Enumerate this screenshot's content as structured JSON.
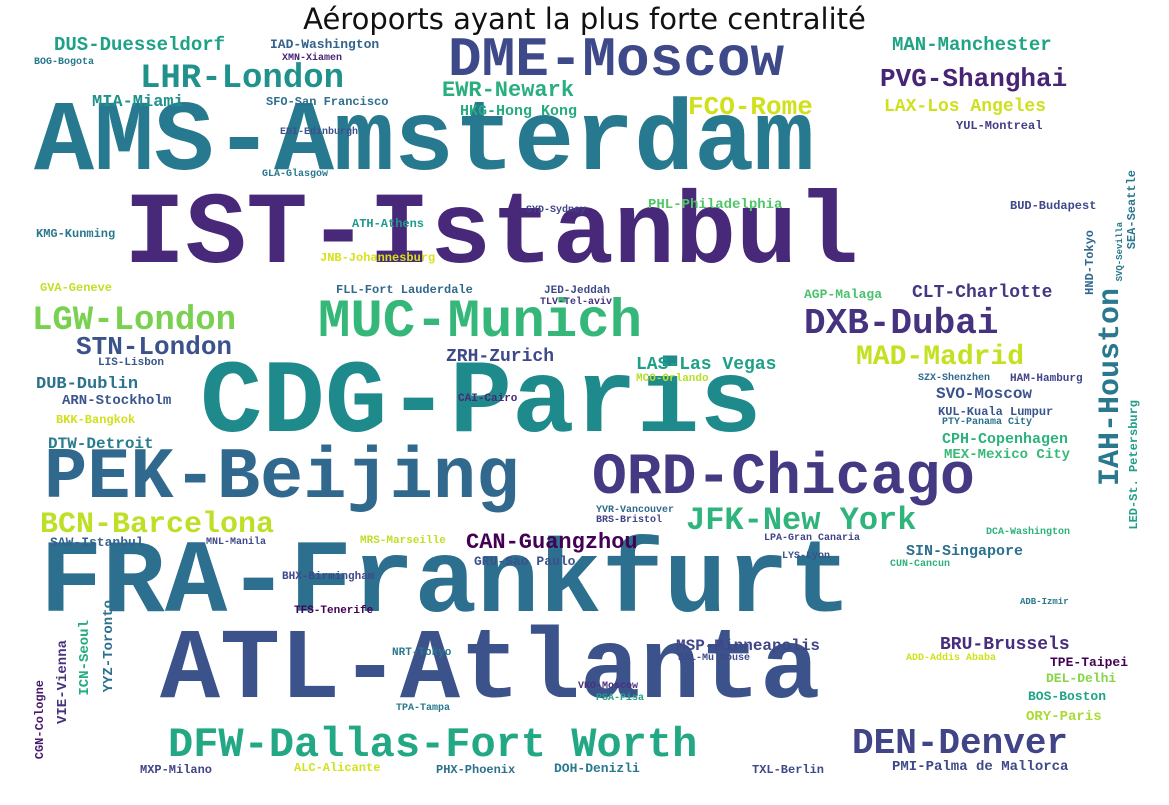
{
  "title": "Aéroports ayant la plus forte centralité",
  "palette": {
    "deep_purple": "#440154",
    "purple": "#482878",
    "indigo": "#3e4989",
    "blue": "#31688e",
    "teal": "#26828e",
    "sea": "#1f9e89",
    "green": "#35b779",
    "lime": "#6ece58",
    "yellow_green": "#b5de2b",
    "yellow": "#d8e219"
  },
  "words": [
    {
      "text": "CDG-Paris",
      "color": "#1f8a8c"
    },
    {
      "text": "FRA-Frankfurt",
      "color": "#2c6f8e"
    },
    {
      "text": "ATL-Atlanta",
      "color": "#3b528b"
    },
    {
      "text": "AMS-Amsterdam",
      "color": "#26798e"
    },
    {
      "text": "IST-Istanbul",
      "color": "#482878"
    },
    {
      "text": "ORD-Chicago",
      "color": "#443983"
    },
    {
      "text": "PEK-Beijing",
      "color": "#31688e"
    },
    {
      "text": "DME-Moscow",
      "color": "#3e4989"
    },
    {
      "text": "MUC-Munich",
      "color": "#35b779"
    },
    {
      "text": "DFW-Dallas-Fort Worth",
      "color": "#22a884"
    },
    {
      "text": "IAH-Houston",
      "color": "#2a788e"
    },
    {
      "text": "LHR-London",
      "color": "#21918c"
    },
    {
      "text": "DXB-Dubai",
      "color": "#46327e"
    },
    {
      "text": "LGW-London",
      "color": "#7ad151"
    },
    {
      "text": "DEN-Denver",
      "color": "#414487"
    },
    {
      "text": "JFK-New York",
      "color": "#2fb47c"
    },
    {
      "text": "BCN-Barcelona",
      "color": "#bddf26"
    },
    {
      "text": "STN-London",
      "color": "#3b528b"
    },
    {
      "text": "MAD-Madrid",
      "color": "#c5e021"
    },
    {
      "text": "PVG-Shanghai",
      "color": "#482475"
    },
    {
      "text": "FCO-Rome",
      "color": "#d0e11c"
    },
    {
      "text": "EWR-Newark",
      "color": "#29af7f"
    },
    {
      "text": "CAN-Guangzhou",
      "color": "#440154"
    },
    {
      "text": "DUS-Duesseldorf",
      "color": "#1fa187"
    },
    {
      "text": "MAN-Manchester",
      "color": "#20a486"
    },
    {
      "text": "LAX-Los Angeles",
      "color": "#cde11d"
    },
    {
      "text": "MIA-Miami",
      "color": "#21918c"
    },
    {
      "text": "CLT-Charlotte",
      "color": "#453781"
    },
    {
      "text": "LAS-Las Vegas",
      "color": "#1fa088"
    },
    {
      "text": "ZRH-Zurich",
      "color": "#3e4989"
    },
    {
      "text": "HKG-Hong Kong",
      "color": "#25ab82"
    },
    {
      "text": "SVO-Moscow",
      "color": "#3b528b"
    },
    {
      "text": "DUB-Dublin",
      "color": "#2c728e"
    },
    {
      "text": "DTW-Detroit",
      "color": "#287c8e"
    },
    {
      "text": "PHL-Philadelphia",
      "color": "#52c569"
    },
    {
      "text": "ARN-Stockholm",
      "color": "#39568c"
    },
    {
      "text": "MSP-Minneapolis",
      "color": "#3f4788"
    },
    {
      "text": "BRU-Brussels",
      "color": "#472d7b"
    },
    {
      "text": "CPH-Copenhagen",
      "color": "#2db27d"
    },
    {
      "text": "SIN-Singapore",
      "color": "#2d708e"
    },
    {
      "text": "MEX-Mexico City",
      "color": "#38b977"
    },
    {
      "text": "SAW-Istanbul",
      "color": "#33638d"
    },
    {
      "text": "GRU-Sao Paulo",
      "color": "#3b528b"
    },
    {
      "text": "BOS-Boston",
      "color": "#20a486"
    },
    {
      "text": "ORY-Paris",
      "color": "#a8db34"
    },
    {
      "text": "DEL-Delhi",
      "color": "#86d549"
    },
    {
      "text": "TPE-Taipei",
      "color": "#440154"
    },
    {
      "text": "PMI-Palma de Mallorca",
      "color": "#3e4989"
    },
    {
      "text": "TXL-Berlin",
      "color": "#3e4989"
    },
    {
      "text": "PHX-Phoenix",
      "color": "#2d708e"
    },
    {
      "text": "DOH-Denizli",
      "color": "#2a788e"
    },
    {
      "text": "MXP-Milano",
      "color": "#414487"
    },
    {
      "text": "ALC-Alicante",
      "color": "#d2e21b"
    },
    {
      "text": "VIE-Vienna",
      "color": "#46337f"
    },
    {
      "text": "YYZ-Toronto",
      "color": "#2d708e"
    },
    {
      "text": "ICN-Seoul",
      "color": "#25ab82"
    },
    {
      "text": "LED-St. Petersburg",
      "color": "#1f9e89"
    },
    {
      "text": "CGN-Cologne",
      "color": "#481a6c"
    },
    {
      "text": "JNB-Johannesburg",
      "color": "#d8e219"
    },
    {
      "text": "AGP-Malaga",
      "color": "#4ac16d"
    },
    {
      "text": "BUD-Budapest",
      "color": "#3e4989"
    },
    {
      "text": "GVA-Geneve",
      "color": "#c2df23"
    },
    {
      "text": "KMG-Kunming",
      "color": "#2a788e"
    },
    {
      "text": "ATH-Athens",
      "color": "#1f9a8a"
    },
    {
      "text": "IAD-Washington",
      "color": "#33638d"
    },
    {
      "text": "SFO-San Francisco",
      "color": "#2e6e8e"
    },
    {
      "text": "KUL-Kuala Lumpur",
      "color": "#39568c"
    },
    {
      "text": "HAM-Hamburg",
      "color": "#414487"
    },
    {
      "text": "MCO-Orlando",
      "color": "#b8de29"
    },
    {
      "text": "NRT-Tokyo",
      "color": "#2a788e"
    },
    {
      "text": "BKK-Bangkok",
      "color": "#d0e11c"
    },
    {
      "text": "HND-Tokyo",
      "color": "#31688e"
    },
    {
      "text": "SEA-Seattle",
      "color": "#2a788e"
    },
    {
      "text": "LIS-Lisbon",
      "color": "#39568c"
    },
    {
      "text": "TFS-Tenerife",
      "color": "#440154"
    },
    {
      "text": "BHX-Birmingham",
      "color": "#3e4989"
    },
    {
      "text": "YUL-Montreal",
      "color": "#433e85"
    },
    {
      "text": "XMN-Xiamen",
      "color": "#482475"
    },
    {
      "text": "BOG-Bogota",
      "color": "#2a788e"
    },
    {
      "text": "EDI-Edinburgh",
      "color": "#3b528b"
    },
    {
      "text": "GLA-Glasgow",
      "color": "#2a788e"
    },
    {
      "text": "SYD-Sydney",
      "color": "#414487"
    },
    {
      "text": "JED-Jeddah",
      "color": "#3e4989"
    },
    {
      "text": "FLL-Fort Lauderdale",
      "color": "#31688e"
    },
    {
      "text": "TLV-Tel-aviv",
      "color": "#46327e"
    },
    {
      "text": "MNL-Manila",
      "color": "#3e4989"
    },
    {
      "text": "LPA-Gran Canaria",
      "color": "#414487"
    },
    {
      "text": "LYS-Lyon",
      "color": "#3b528b"
    },
    {
      "text": "CUN-Cancun",
      "color": "#2db27d"
    },
    {
      "text": "BRS-Bristol",
      "color": "#414487"
    },
    {
      "text": "YVR-Vancouver",
      "color": "#31688e"
    },
    {
      "text": "CAI-Cairo",
      "color": "#482878"
    },
    {
      "text": "MRS-Marseille",
      "color": "#bddf26"
    },
    {
      "text": "SZX-Shenzhen",
      "color": "#31688e"
    },
    {
      "text": "PTY-Panama City",
      "color": "#2c728e"
    },
    {
      "text": "DCA-Washington",
      "color": "#2db27d"
    },
    {
      "text": "BSL-Mulhouse",
      "color": "#3e4989"
    },
    {
      "text": "PSA-Pisa",
      "color": "#20a386"
    },
    {
      "text": "VKO-Moscow",
      "color": "#46327e"
    },
    {
      "text": "TPA-Tampa",
      "color": "#2a788e"
    },
    {
      "text": "ADD-Addis Ababa",
      "color": "#d0e11c"
    },
    {
      "text": "ADB-Izmir",
      "color": "#2a788e"
    },
    {
      "text": "SVQ-Sevilla",
      "color": "#2a788e"
    },
    {
      "text": "GRU",
      "color": "#3b528b"
    }
  ]
}
